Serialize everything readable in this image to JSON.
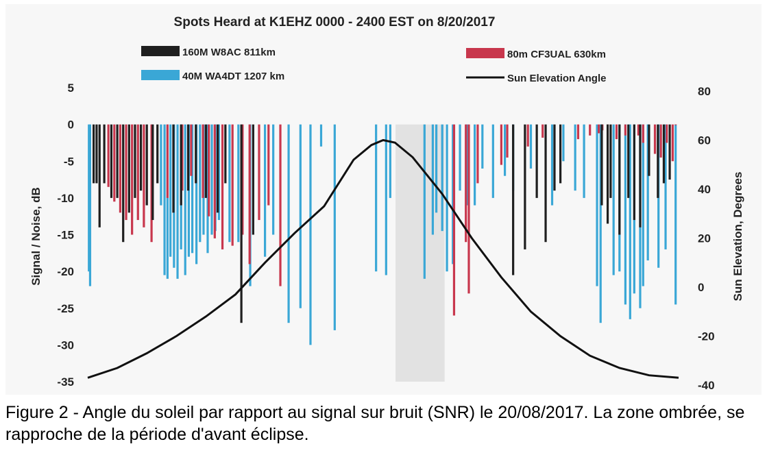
{
  "chart_data": {
    "type": "bar",
    "title": "Spots Heard at K1EHZ 0000 - 2400 EST on 8/20/2017",
    "ylabel": "Signal / Noise, dB",
    "y2label": "Sun Elevation, Degrees",
    "ylim": [
      -35,
      5
    ],
    "y2lim": [
      -40,
      80
    ],
    "yticks": [
      "5",
      "0",
      "-5",
      "-10",
      "-15",
      "-20",
      "-25",
      "-30",
      "-35"
    ],
    "y2ticks": [
      "80",
      "60",
      "40",
      "20",
      "0",
      "-20",
      "-40"
    ],
    "grid": false,
    "legend_placement": "top",
    "colors": {
      "160m": "#1f1f1f",
      "80m": "#c8374d",
      "40m": "#3aa7d6",
      "sun": "#111111",
      "shade": "#e2e2e2"
    },
    "legend": [
      {
        "label": "160M W8AC 811km",
        "key": "160m"
      },
      {
        "label": "80m CF3UAL 630km",
        "key": "80m"
      },
      {
        "label": "40M WA4DT 1207 km",
        "key": "40m"
      },
      {
        "label": "Sun Elevation Angle",
        "key": "sun"
      }
    ],
    "shaded_region_x": [
      0.521,
      0.604
    ],
    "series": [
      {
        "name": "40M WA4DT 1207 km",
        "key": "40m",
        "points": [
          [
            0.002,
            -20
          ],
          [
            0.004,
            -22
          ],
          [
            0.124,
            -11
          ],
          [
            0.13,
            -20.5
          ],
          [
            0.135,
            -21
          ],
          [
            0.14,
            -18
          ],
          [
            0.146,
            -19.5
          ],
          [
            0.152,
            -21
          ],
          [
            0.158,
            -17
          ],
          [
            0.165,
            -20.5
          ],
          [
            0.171,
            -18
          ],
          [
            0.177,
            -17.5
          ],
          [
            0.184,
            -19
          ],
          [
            0.19,
            -16
          ],
          [
            0.196,
            -15
          ],
          [
            0.203,
            -17.5
          ],
          [
            0.21,
            -15
          ],
          [
            0.216,
            -14.5
          ],
          [
            0.222,
            -13
          ],
          [
            0.24,
            -16
          ],
          [
            0.255,
            -16
          ],
          [
            0.275,
            -22
          ],
          [
            0.3,
            -18
          ],
          [
            0.314,
            -15
          ],
          [
            0.34,
            -27
          ],
          [
            0.36,
            -25
          ],
          [
            0.377,
            -30
          ],
          [
            0.395,
            -3
          ],
          [
            0.418,
            -28
          ],
          [
            0.488,
            -20
          ],
          [
            0.505,
            -20.5
          ],
          [
            0.512,
            -10
          ],
          [
            0.57,
            -21
          ],
          [
            0.584,
            -15
          ],
          [
            0.59,
            -12
          ],
          [
            0.6,
            -14.5
          ],
          [
            0.608,
            -20
          ],
          [
            0.618,
            -19
          ],
          [
            0.63,
            -9
          ],
          [
            0.642,
            -11
          ],
          [
            0.655,
            -11
          ],
          [
            0.668,
            -6
          ],
          [
            0.686,
            -10
          ],
          [
            0.706,
            -7
          ],
          [
            0.72,
            -9
          ],
          [
            0.75,
            -6
          ],
          [
            0.786,
            -11
          ],
          [
            0.805,
            -5
          ],
          [
            0.825,
            -9
          ],
          [
            0.84,
            -10
          ],
          [
            0.862,
            -22
          ],
          [
            0.868,
            -27
          ],
          [
            0.89,
            -20.5
          ],
          [
            0.9,
            -20
          ],
          [
            0.91,
            -24.5
          ],
          [
            0.918,
            -26.5
          ],
          [
            0.925,
            -23
          ],
          [
            0.935,
            -25
          ],
          [
            0.94,
            -22
          ],
          [
            0.948,
            -18.5
          ],
          [
            0.966,
            -19.5
          ],
          [
            0.978,
            -17
          ],
          [
            0.995,
            -24.5
          ]
        ]
      },
      {
        "name": "80m CF3UAL 630km",
        "key": "80m",
        "points": [
          [
            0.035,
            -8.5
          ],
          [
            0.045,
            -10.5
          ],
          [
            0.055,
            -12
          ],
          [
            0.065,
            -13
          ],
          [
            0.075,
            -15
          ],
          [
            0.085,
            -13
          ],
          [
            0.095,
            -14
          ],
          [
            0.108,
            -16
          ],
          [
            0.135,
            -10
          ],
          [
            0.16,
            -9
          ],
          [
            0.175,
            -7
          ],
          [
            0.195,
            -10
          ],
          [
            0.205,
            -12.5
          ],
          [
            0.215,
            -15.5
          ],
          [
            0.228,
            -17
          ],
          [
            0.245,
            -16.5
          ],
          [
            0.262,
            -15
          ],
          [
            0.274,
            -19
          ],
          [
            0.29,
            -13
          ],
          [
            0.306,
            -11
          ],
          [
            0.326,
            -22
          ],
          [
            0.62,
            -26
          ],
          [
            0.645,
            -23
          ],
          [
            0.64,
            -16
          ],
          [
            0.66,
            -8
          ],
          [
            0.7,
            -5.5
          ],
          [
            0.71,
            -4.5
          ],
          [
            0.745,
            -3
          ],
          [
            0.77,
            -1.8
          ],
          [
            0.83,
            -2
          ],
          [
            0.85,
            -1.5
          ],
          [
            0.865,
            -1.2
          ],
          [
            0.871,
            -0.8
          ],
          [
            0.88,
            0
          ],
          [
            0.895,
            -2
          ],
          [
            0.91,
            -1.5
          ],
          [
            0.932,
            -1.5
          ],
          [
            0.94,
            -2.5
          ],
          [
            0.96,
            -4
          ],
          [
            0.97,
            -4.5
          ],
          [
            0.98,
            -2.5
          ],
          [
            0.99,
            -5
          ],
          [
            0.995,
            0
          ]
        ]
      },
      {
        "name": "160M W8AC 811km",
        "key": "160m",
        "points": [
          [
            0.01,
            -8
          ],
          [
            0.015,
            -8
          ],
          [
            0.02,
            -14
          ],
          [
            0.028,
            -8
          ],
          [
            0.04,
            -10
          ],
          [
            0.05,
            -10
          ],
          [
            0.06,
            -16
          ],
          [
            0.07,
            -12
          ],
          [
            0.08,
            -10
          ],
          [
            0.09,
            -9
          ],
          [
            0.1,
            -11
          ],
          [
            0.11,
            -13
          ],
          [
            0.118,
            -8
          ],
          [
            0.145,
            -12
          ],
          [
            0.158,
            -11
          ],
          [
            0.17,
            -9
          ],
          [
            0.183,
            -8
          ],
          [
            0.2,
            -10
          ],
          [
            0.22,
            -12
          ],
          [
            0.233,
            -8
          ],
          [
            0.26,
            -27
          ],
          [
            0.28,
            -15
          ],
          [
            0.72,
            -20.5
          ],
          [
            0.74,
            -17
          ],
          [
            0.76,
            -10
          ],
          [
            0.775,
            -16
          ],
          [
            0.79,
            -9
          ],
          [
            0.8,
            -8
          ],
          [
            0.87,
            -11
          ],
          [
            0.88,
            -13.5
          ],
          [
            0.885,
            -10
          ],
          [
            0.9,
            -15
          ],
          [
            0.915,
            -10
          ],
          [
            0.925,
            -13
          ],
          [
            0.935,
            -14
          ],
          [
            0.95,
            -7
          ],
          [
            0.965,
            -10
          ],
          [
            0.975,
            -8
          ],
          [
            0.985,
            -7.5
          ]
        ]
      }
    ],
    "sun_elevation": {
      "x": [
        0,
        0.05,
        0.1,
        0.15,
        0.2,
        0.25,
        0.3,
        0.35,
        0.4,
        0.45,
        0.48,
        0.5,
        0.52,
        0.55,
        0.6,
        0.65,
        0.7,
        0.75,
        0.8,
        0.85,
        0.9,
        0.95,
        1.0
      ],
      "y": [
        -37,
        -33,
        -27,
        -20,
        -12,
        -3,
        10,
        22,
        33,
        52,
        58,
        60,
        59,
        53,
        38,
        20,
        4,
        -10,
        -20,
        -28,
        -33,
        -36,
        -37
      ]
    }
  },
  "caption": "Figure 2 - Angle du soleil par rapport au signal sur bruit (SNR) le 20/08/2017. La zone ombrée, se rapproche de la période d'avant éclipse."
}
